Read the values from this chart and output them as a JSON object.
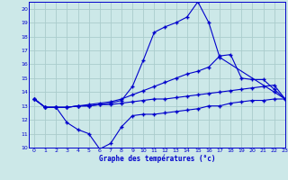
{
  "bg_color": "#cce8e8",
  "grid_color": "#aacccc",
  "line_color": "#0000cc",
  "title": "Graphe des températures (°c)",
  "xlim": [
    -0.5,
    23
  ],
  "ylim": [
    10,
    20.5
  ],
  "yticks": [
    10,
    11,
    12,
    13,
    14,
    15,
    16,
    17,
    18,
    19,
    20
  ],
  "xticks": [
    0,
    1,
    2,
    3,
    4,
    5,
    6,
    7,
    8,
    9,
    10,
    11,
    12,
    13,
    14,
    15,
    16,
    17,
    18,
    19,
    20,
    21,
    22,
    23
  ],
  "line_peak_x": [
    0,
    1,
    2,
    3,
    4,
    5,
    6,
    7,
    8,
    9,
    10,
    11,
    12,
    13,
    14,
    15,
    16,
    17,
    22,
    23
  ],
  "line_peak_y": [
    13.5,
    12.9,
    12.9,
    12.9,
    13.0,
    13.0,
    13.1,
    13.2,
    13.4,
    14.4,
    16.3,
    18.3,
    18.7,
    19.0,
    19.4,
    20.5,
    19.0,
    16.5,
    14.0,
    13.5
  ],
  "line_mid_x": [
    0,
    1,
    2,
    3,
    4,
    5,
    6,
    7,
    8,
    9,
    10,
    11,
    12,
    13,
    14,
    15,
    16,
    17,
    18,
    19,
    20,
    21,
    22,
    23
  ],
  "line_mid_y": [
    13.5,
    12.9,
    12.9,
    12.9,
    13.0,
    13.1,
    13.2,
    13.3,
    13.5,
    13.8,
    14.1,
    14.4,
    14.7,
    15.0,
    15.3,
    15.5,
    15.8,
    16.6,
    16.7,
    15.0,
    14.9,
    14.9,
    14.2,
    13.5
  ],
  "line_low_x": [
    0,
    1,
    2,
    3,
    4,
    5,
    6,
    7,
    8,
    9,
    10,
    11,
    12,
    13,
    14,
    15,
    16,
    17,
    18,
    19,
    20,
    21,
    22,
    23
  ],
  "line_low_y": [
    13.5,
    12.9,
    12.9,
    12.9,
    13.0,
    13.0,
    13.1,
    13.1,
    13.2,
    13.3,
    13.4,
    13.5,
    13.5,
    13.6,
    13.7,
    13.8,
    13.9,
    14.0,
    14.1,
    14.2,
    14.3,
    14.4,
    14.5,
    13.5
  ],
  "line_dip_x": [
    0,
    1,
    2,
    3,
    4,
    5,
    6,
    7,
    8,
    9,
    10,
    11,
    12,
    13,
    14,
    15,
    16,
    17,
    18,
    19,
    20,
    21,
    22,
    23
  ],
  "line_dip_y": [
    13.5,
    12.9,
    12.9,
    11.8,
    11.3,
    11.0,
    9.9,
    10.3,
    11.5,
    12.3,
    12.4,
    12.4,
    12.5,
    12.6,
    12.7,
    12.8,
    13.0,
    13.0,
    13.2,
    13.3,
    13.4,
    13.4,
    13.5,
    13.5
  ]
}
